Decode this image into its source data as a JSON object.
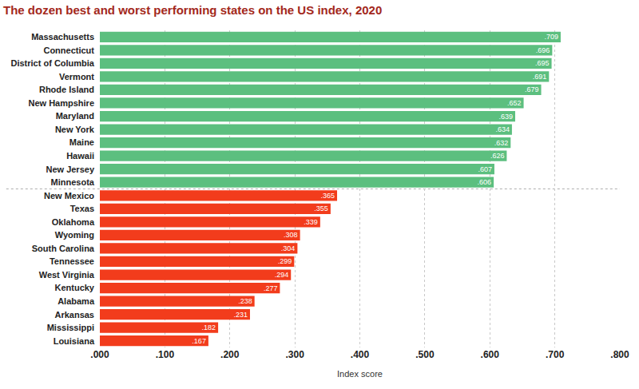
{
  "chart_data": {
    "type": "bar",
    "orientation": "horizontal",
    "title": "The dozen best and worst performing states on the US index, 2020",
    "xlabel": "Index score",
    "categories": [
      "Massachusetts",
      "Connecticut",
      "District of Columbia",
      "Vermont",
      "Rhode Island",
      "New Hampshire",
      "Maryland",
      "New York",
      "Maine",
      "Hawaii",
      "New Jersey",
      "Minnesota",
      "New Mexico",
      "Texas",
      "Oklahoma",
      "Wyoming",
      "South Carolina",
      "Tennessee",
      "West Virginia",
      "Kentucky",
      "Alabama",
      "Arkansas",
      "Mississippi",
      "Louisiana"
    ],
    "values": [
      0.709,
      0.696,
      0.695,
      0.691,
      0.679,
      0.652,
      0.639,
      0.634,
      0.632,
      0.626,
      0.607,
      0.606,
      0.365,
      0.355,
      0.339,
      0.308,
      0.304,
      0.299,
      0.294,
      0.277,
      0.238,
      0.231,
      0.182,
      0.167
    ],
    "value_labels": [
      ".709",
      ".696",
      ".695",
      ".691",
      ".679",
      ".652",
      ".639",
      ".634",
      ".632",
      ".626",
      ".607",
      ".606",
      ".365",
      ".355",
      ".339",
      ".308",
      ".304",
      ".299",
      ".294",
      ".277",
      ".238",
      ".231",
      ".182",
      ".167"
    ],
    "colors": [
      "#5cbf7f",
      "#5cbf7f",
      "#5cbf7f",
      "#5cbf7f",
      "#5cbf7f",
      "#5cbf7f",
      "#5cbf7f",
      "#5cbf7f",
      "#5cbf7f",
      "#5cbf7f",
      "#5cbf7f",
      "#5cbf7f",
      "#f23c1c",
      "#f23c1c",
      "#f23c1c",
      "#f23c1c",
      "#f23c1c",
      "#f23c1c",
      "#f23c1c",
      "#f23c1c",
      "#f23c1c",
      "#f23c1c",
      "#f23c1c",
      "#f23c1c"
    ],
    "xlim": [
      0,
      0.8
    ],
    "xticks": [
      {
        "value": 0,
        "label": ".000"
      },
      {
        "value": 0.1,
        "label": ".100"
      },
      {
        "value": 0.2,
        "label": ".200"
      },
      {
        "value": 0.3,
        "label": ".300"
      },
      {
        "value": 0.4,
        "label": ".400"
      },
      {
        "value": 0.5,
        "label": ".500"
      },
      {
        "value": 0.6,
        "label": ".600"
      },
      {
        "value": 0.7,
        "label": ".700"
      },
      {
        "value": 0.8,
        "label": ".800"
      }
    ],
    "grid": true,
    "data_labels": true
  }
}
